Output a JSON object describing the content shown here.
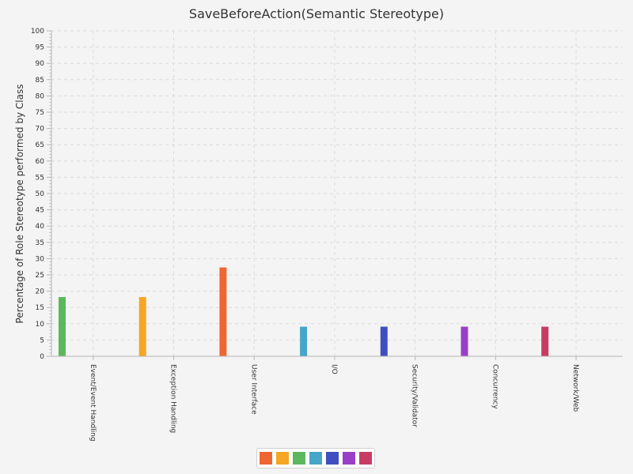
{
  "chart_data": {
    "type": "bar",
    "title": "SaveBeforeAction(Semantic Stereotype)",
    "ylabel": "Percentage of Role Stereotype performed by Class",
    "xlabel": "",
    "ylim": [
      0,
      100
    ],
    "y_major_step": 5,
    "grid": true,
    "categories": [
      "Event/Event Handling",
      "Exception Handling",
      "User Interface",
      "I/O",
      "Security/Validator",
      "Concurrency",
      "Network/Web"
    ],
    "values": [
      18.2,
      18.2,
      27.3,
      9.1,
      9.1,
      9.1,
      9.1
    ],
    "bar_colors": [
      "#5cb85c",
      "#f5a623",
      "#f06632",
      "#46a6c8",
      "#3f4fc0",
      "#9a3fc8",
      "#c83c64"
    ],
    "legend_colors": [
      "#f06632",
      "#f5a623",
      "#5cb85c",
      "#46a6c8",
      "#3f4fc0",
      "#9a3fc8",
      "#c83c64"
    ],
    "legend_position": "bottom-center"
  }
}
